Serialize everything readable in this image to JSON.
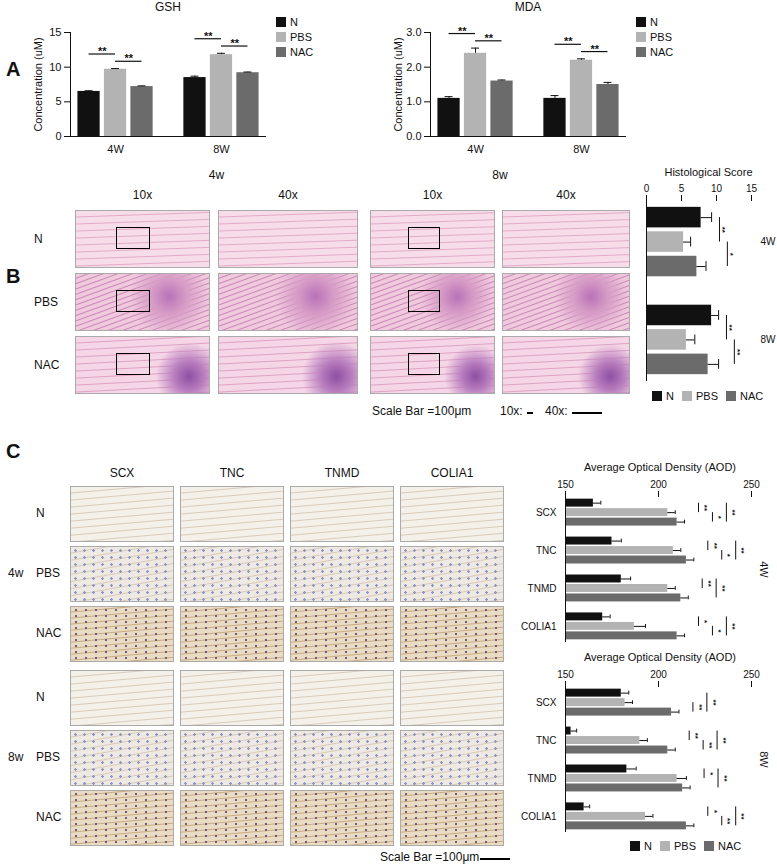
{
  "chart_data": [
    {
      "type": "bar",
      "title": "GSH",
      "ylabel": "Concentration (uM)",
      "categories": [
        "4W",
        "8W"
      ],
      "series": [
        {
          "name": "N",
          "color": "#111111",
          "values": [
            6.5,
            8.5
          ],
          "errors": [
            0.1,
            0.2
          ]
        },
        {
          "name": "PBS",
          "color": "#b3b3b3",
          "values": [
            9.7,
            11.8
          ],
          "errors": [
            0.1,
            0.2
          ]
        },
        {
          "name": "NAC",
          "color": "#6b6b6b",
          "values": [
            7.2,
            9.2
          ],
          "errors": [
            0.1,
            0.1
          ]
        }
      ],
      "ylim": [
        0,
        15
      ],
      "yticks": [
        0,
        5,
        10,
        15
      ],
      "legend": "right",
      "significance": [
        {
          "category": "4W",
          "from": "PBS",
          "to": "NAC",
          "label": "**"
        },
        {
          "category": "4W",
          "from": "N",
          "to": "PBS",
          "label": "**"
        },
        {
          "category": "8W",
          "from": "PBS",
          "to": "NAC",
          "label": "**"
        },
        {
          "category": "8W",
          "from": "N",
          "to": "PBS",
          "label": "**"
        }
      ]
    },
    {
      "type": "bar",
      "title": "MDA",
      "ylabel": "Concentration (uM)",
      "categories": [
        "4W",
        "8W"
      ],
      "series": [
        {
          "name": "N",
          "color": "#111111",
          "values": [
            1.1,
            1.1
          ],
          "errors": [
            0.05,
            0.08
          ]
        },
        {
          "name": "PBS",
          "color": "#b3b3b3",
          "values": [
            2.4,
            2.2
          ],
          "errors": [
            0.15,
            0.04
          ]
        },
        {
          "name": "NAC",
          "color": "#6b6b6b",
          "values": [
            1.6,
            1.5
          ],
          "errors": [
            0.03,
            0.06
          ]
        }
      ],
      "ylim": [
        0,
        3
      ],
      "yticks": [
        0,
        1,
        2,
        3
      ],
      "legend": "right",
      "significance": [
        {
          "category": "4W",
          "from": "PBS",
          "to": "NAC",
          "label": "**"
        },
        {
          "category": "4W",
          "from": "N",
          "to": "PBS",
          "label": "**"
        },
        {
          "category": "8W",
          "from": "PBS",
          "to": "NAC",
          "label": "**"
        },
        {
          "category": "8W",
          "from": "N",
          "to": "PBS",
          "label": "**"
        }
      ]
    },
    {
      "type": "bar",
      "orientation": "horizontal",
      "title": "Histological Score",
      "categories": [
        "4W",
        "8W"
      ],
      "series": [
        {
          "name": "N",
          "color": "#111111",
          "values": [
            7.8,
            9.3
          ],
          "errors": [
            1.5,
            1.0
          ]
        },
        {
          "name": "PBS",
          "color": "#b3b3b3",
          "values": [
            5.3,
            5.7
          ],
          "errors": [
            1.0,
            1.2
          ]
        },
        {
          "name": "NAC",
          "color": "#6b6b6b",
          "values": [
            7.2,
            8.8
          ],
          "errors": [
            1.3,
            1.5
          ]
        }
      ],
      "xlim": [
        0,
        15
      ],
      "xticks": [
        0,
        5,
        10,
        15
      ],
      "legend": "bottom",
      "significance": [
        {
          "category": "4W",
          "from": "N",
          "to": "PBS",
          "label": "**"
        },
        {
          "category": "4W",
          "from": "PBS",
          "to": "NAC",
          "label": "*"
        },
        {
          "category": "8W",
          "from": "N",
          "to": "PBS",
          "label": "**"
        },
        {
          "category": "8W",
          "from": "PBS",
          "to": "NAC",
          "label": "**"
        }
      ]
    },
    {
      "type": "bar",
      "orientation": "horizontal",
      "title": "Average Optical Density (AOD)",
      "annotation": "4W",
      "categories": [
        "SCX",
        "TNC",
        "TNMD",
        "COLIA1"
      ],
      "series": [
        {
          "name": "N",
          "color": "#111111",
          "values": [
            165,
            175,
            180,
            170
          ],
          "errors": [
            4,
            5,
            5,
            4
          ]
        },
        {
          "name": "PBS",
          "color": "#b3b3b3",
          "values": [
            205,
            208,
            205,
            187
          ],
          "errors": [
            4,
            4,
            4,
            6
          ]
        },
        {
          "name": "NAC",
          "color": "#6b6b6b",
          "values": [
            210,
            215,
            212,
            210
          ],
          "errors": [
            4,
            4,
            4,
            4
          ]
        }
      ],
      "xlim": [
        150,
        250
      ],
      "xticks": [
        150,
        200,
        250
      ],
      "significance": [
        {
          "category": "SCX",
          "from": "N",
          "to": "PBS",
          "label": "**"
        },
        {
          "category": "SCX",
          "from": "PBS",
          "to": "NAC",
          "label": "*"
        },
        {
          "category": "SCX",
          "from": "N",
          "to": "NAC",
          "label": "**"
        },
        {
          "category": "TNC",
          "from": "N",
          "to": "PBS",
          "label": "**"
        },
        {
          "category": "TNC",
          "from": "PBS",
          "to": "NAC",
          "label": "*"
        },
        {
          "category": "TNC",
          "from": "N",
          "to": "NAC",
          "label": "**"
        },
        {
          "category": "TNMD",
          "from": "N",
          "to": "PBS",
          "label": "**"
        },
        {
          "category": "TNMD",
          "from": "N",
          "to": "NAC",
          "label": "**"
        },
        {
          "category": "COLIA1",
          "from": "N",
          "to": "PBS",
          "label": "*"
        },
        {
          "category": "COLIA1",
          "from": "PBS",
          "to": "NAC",
          "label": "*"
        },
        {
          "category": "COLIA1",
          "from": "N",
          "to": "NAC",
          "label": "**"
        }
      ]
    },
    {
      "type": "bar",
      "orientation": "horizontal",
      "title": "Average Optical Density (AOD)",
      "annotation": "8W",
      "categories": [
        "SCX",
        "TNC",
        "TNMD",
        "COLIA1"
      ],
      "series": [
        {
          "name": "N",
          "color": "#111111",
          "values": [
            180,
            153,
            183,
            160
          ],
          "errors": [
            4,
            3,
            5,
            3
          ]
        },
        {
          "name": "PBS",
          "color": "#b3b3b3",
          "values": [
            182,
            190,
            210,
            193
          ],
          "errors": [
            4,
            4,
            5,
            4
          ]
        },
        {
          "name": "NAC",
          "color": "#6b6b6b",
          "values": [
            207,
            205,
            213,
            215
          ],
          "errors": [
            4,
            4,
            4,
            4
          ]
        }
      ],
      "xlim": [
        150,
        250
      ],
      "xticks": [
        150,
        200,
        250
      ],
      "legend": "bottom",
      "significance": [
        {
          "category": "SCX",
          "from": "PBS",
          "to": "NAC",
          "label": "**"
        },
        {
          "category": "SCX",
          "from": "N",
          "to": "NAC",
          "label": "**"
        },
        {
          "category": "TNC",
          "from": "N",
          "to": "PBS",
          "label": "**"
        },
        {
          "category": "TNC",
          "from": "PBS",
          "to": "NAC",
          "label": "**"
        },
        {
          "category": "TNC",
          "from": "N",
          "to": "NAC",
          "label": "**"
        },
        {
          "category": "TNMD",
          "from": "N",
          "to": "PBS",
          "label": "*"
        },
        {
          "category": "TNMD",
          "from": "N",
          "to": "NAC",
          "label": "**"
        },
        {
          "category": "COLIA1",
          "from": "N",
          "to": "PBS",
          "label": "*"
        },
        {
          "category": "COLIA1",
          "from": "PBS",
          "to": "NAC",
          "label": "**"
        },
        {
          "category": "COLIA1",
          "from": "N",
          "to": "NAC",
          "label": "**"
        }
      ]
    }
  ],
  "figure": {
    "panel_labels": [
      "A",
      "B",
      "C"
    ],
    "he": {
      "weeks": [
        "4w",
        "8w"
      ],
      "magnifications": [
        "10x",
        "40x"
      ],
      "rows": [
        "N",
        "PBS",
        "NAC"
      ],
      "scale_bar": "Scale Bar =100μm",
      "scale_marks": [
        "10x:",
        "40x:"
      ]
    },
    "ihc": {
      "weeks": [
        "4w",
        "8w"
      ],
      "markers": [
        "SCX",
        "TNC",
        "TNMD",
        "COLIA1"
      ],
      "rows": [
        "N",
        "PBS",
        "NAC"
      ],
      "scale_bar": "Scale Bar =100μm"
    }
  }
}
